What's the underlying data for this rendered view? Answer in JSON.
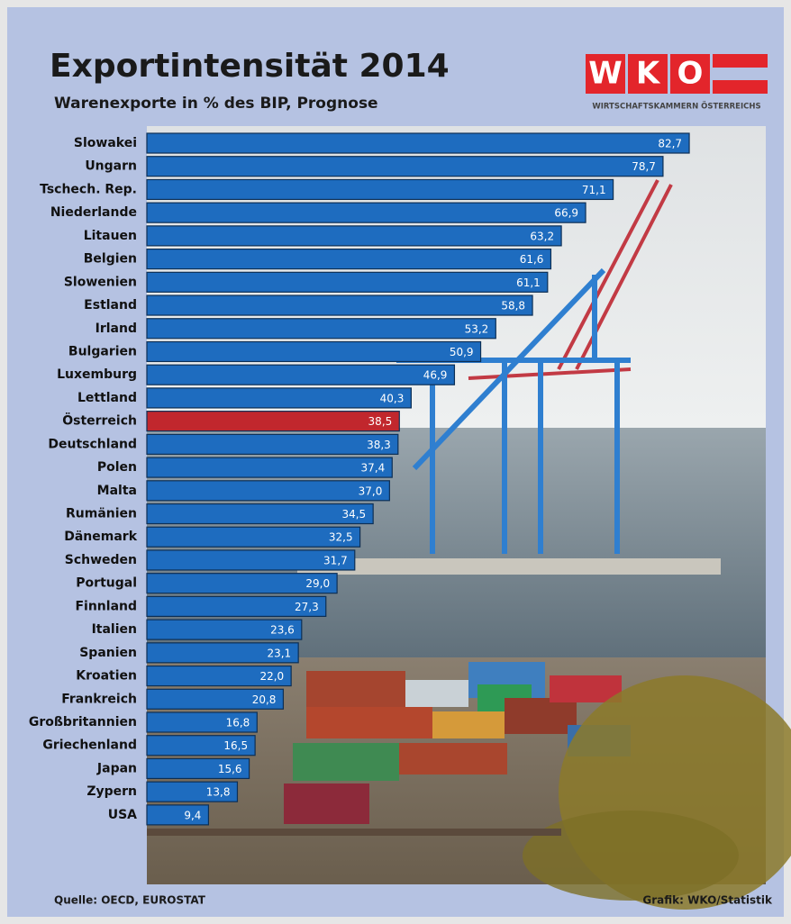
{
  "chart_data": {
    "type": "bar",
    "orientation": "horizontal",
    "title": "Exportintensität 2014",
    "subtitle": "Warenexporte in % des BIP, Prognose",
    "logo_letters": [
      "W",
      "K",
      "O"
    ],
    "logo_text": "WIRTSCHAFTSKAMMERN ÖSTERREICHS",
    "source": "Quelle: OECD, EUROSTAT",
    "credit": "Grafik: WKO/Statistik",
    "categories": [
      "Slowakei",
      "Ungarn",
      "Tschech. Rep.",
      "Niederlande",
      "Litauen",
      "Belgien",
      "Slowenien",
      "Estland",
      "Irland",
      "Bulgarien",
      "Luxemburg",
      "Lettland",
      "Österreich",
      "Deutschland",
      "Polen",
      "Malta",
      "Rumänien",
      "Dänemark",
      "Schweden",
      "Portugal",
      "Finnland",
      "Italien",
      "Spanien",
      "Kroatien",
      "Frankreich",
      "Großbritannien",
      "Griechenland",
      "Japan",
      "Zypern",
      "USA"
    ],
    "values": [
      82.7,
      78.7,
      71.1,
      66.9,
      63.2,
      61.6,
      61.1,
      58.8,
      53.2,
      50.9,
      46.9,
      40.3,
      38.5,
      38.3,
      37.4,
      37.0,
      34.5,
      32.5,
      31.7,
      29.0,
      27.3,
      23.6,
      23.1,
      22.0,
      20.8,
      16.8,
      16.5,
      15.6,
      13.8,
      9.4
    ],
    "value_labels": [
      "82,7",
      "78,7",
      "71,1",
      "66,9",
      "63,2",
      "61,6",
      "61,1",
      "58,8",
      "53,2",
      "50,9",
      "46,9",
      "40,3",
      "38,5",
      "38,3",
      "37,4",
      "37,0",
      "34,5",
      "32,5",
      "31,7",
      "29,0",
      "27,3",
      "23,6",
      "23,1",
      "22,0",
      "20,8",
      "16,8",
      "16,5",
      "15,6",
      "13,8",
      "9,4"
    ],
    "colors": [
      "#1e6cbf",
      "#1e6cbf",
      "#1e6cbf",
      "#1e6cbf",
      "#1e6cbf",
      "#1e6cbf",
      "#1e6cbf",
      "#1e6cbf",
      "#1e6cbf",
      "#1e6cbf",
      "#1e6cbf",
      "#1e6cbf",
      "#c1272d",
      "#1e6cbf",
      "#1e6cbf",
      "#1e6cbf",
      "#1e6cbf",
      "#1e6cbf",
      "#1e6cbf",
      "#1e6cbf",
      "#1e6cbf",
      "#1e6cbf",
      "#1e6cbf",
      "#1e6cbf",
      "#1e6cbf",
      "#1e6cbf",
      "#1e6cbf",
      "#1e6cbf",
      "#1e6cbf",
      "#1e6cbf"
    ]
  }
}
